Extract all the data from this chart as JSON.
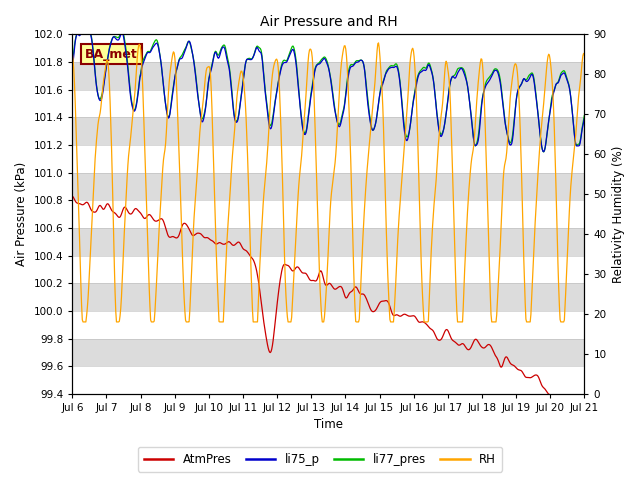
{
  "title": "Air Pressure and RH",
  "xlabel": "Time",
  "ylabel_left": "Air Pressure (kPa)",
  "ylabel_right": "Relativity Humidity (%)",
  "ylim_left": [
    99.4,
    102.0
  ],
  "ylim_right": [
    0,
    90
  ],
  "yticks_left": [
    99.4,
    99.6,
    99.8,
    100.0,
    100.2,
    100.4,
    100.6,
    100.8,
    101.0,
    101.2,
    101.4,
    101.6,
    101.8,
    102.0
  ],
  "yticks_right": [
    0,
    10,
    20,
    30,
    40,
    50,
    60,
    70,
    80,
    90
  ],
  "xtick_labels": [
    "Jul 6",
    "Jul 7",
    "Jul 8",
    "Jul 9",
    "Jul 10",
    "Jul 11",
    "Jul 12",
    "Jul 13",
    "Jul 14",
    "Jul 15",
    "Jul 16",
    "Jul 17",
    "Jul 18",
    "Jul 19",
    "Jul 20",
    "Jul 21"
  ],
  "annotation_text": "BA_met",
  "annotation_bg": "#FFFF99",
  "annotation_border": "#8B0000",
  "colors": {
    "AtmPres": "#CC0000",
    "li75_p": "#0000CC",
    "li77_pres": "#00BB00",
    "RH": "#FFA500"
  },
  "legend_labels": [
    "AtmPres",
    "li75_p",
    "li77_pres",
    "RH"
  ],
  "bg_color": "#FFFFFF",
  "band_color": "#DCDCDC"
}
